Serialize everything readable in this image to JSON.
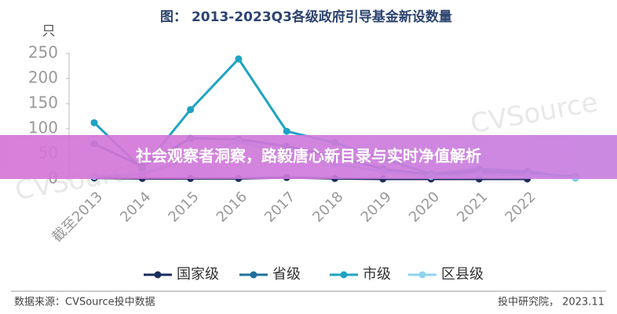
{
  "chart_data": {
    "type": "line",
    "title": "图： 2013-2023Q3各级政府引导基金新设数量",
    "y_label": "只",
    "categories": [
      "截至2013",
      "2014",
      "2015",
      "2016",
      "2017",
      "2018",
      "2019",
      "2020",
      "2021",
      "2022",
      null
    ],
    "series": [
      {
        "name": "国家级",
        "color": "#1b2c5e",
        "values": [
          2,
          1,
          1,
          1,
          3,
          1,
          0,
          0,
          0,
          0,
          null
        ]
      },
      {
        "name": "省级",
        "color": "#1f6f9b",
        "values": [
          70,
          25,
          81,
          79,
          65,
          45,
          20,
          8,
          15,
          10,
          5
        ]
      },
      {
        "name": "市级",
        "color": "#1ea3c4",
        "values": [
          112,
          20,
          138,
          239,
          95,
          72,
          40,
          10,
          20,
          15,
          2
        ]
      },
      {
        "name": "区县级",
        "color": "#8fd3ee",
        "values": [
          5,
          10,
          40,
          75,
          50,
          30,
          15,
          5,
          10,
          8,
          3
        ]
      }
    ],
    "ylim": [
      0,
      250
    ],
    "yticks": [
      0,
      50,
      100,
      150,
      200,
      250
    ],
    "grid": false,
    "legend": "bottom"
  },
  "banner": {
    "text": "社会观察者洞察，路毅唐心新目录与实时净值解析"
  },
  "footer": {
    "source": "数据来源：CVSource投中数据",
    "credit": "投中研究院， 2023.11"
  },
  "watermark": "CVSource"
}
